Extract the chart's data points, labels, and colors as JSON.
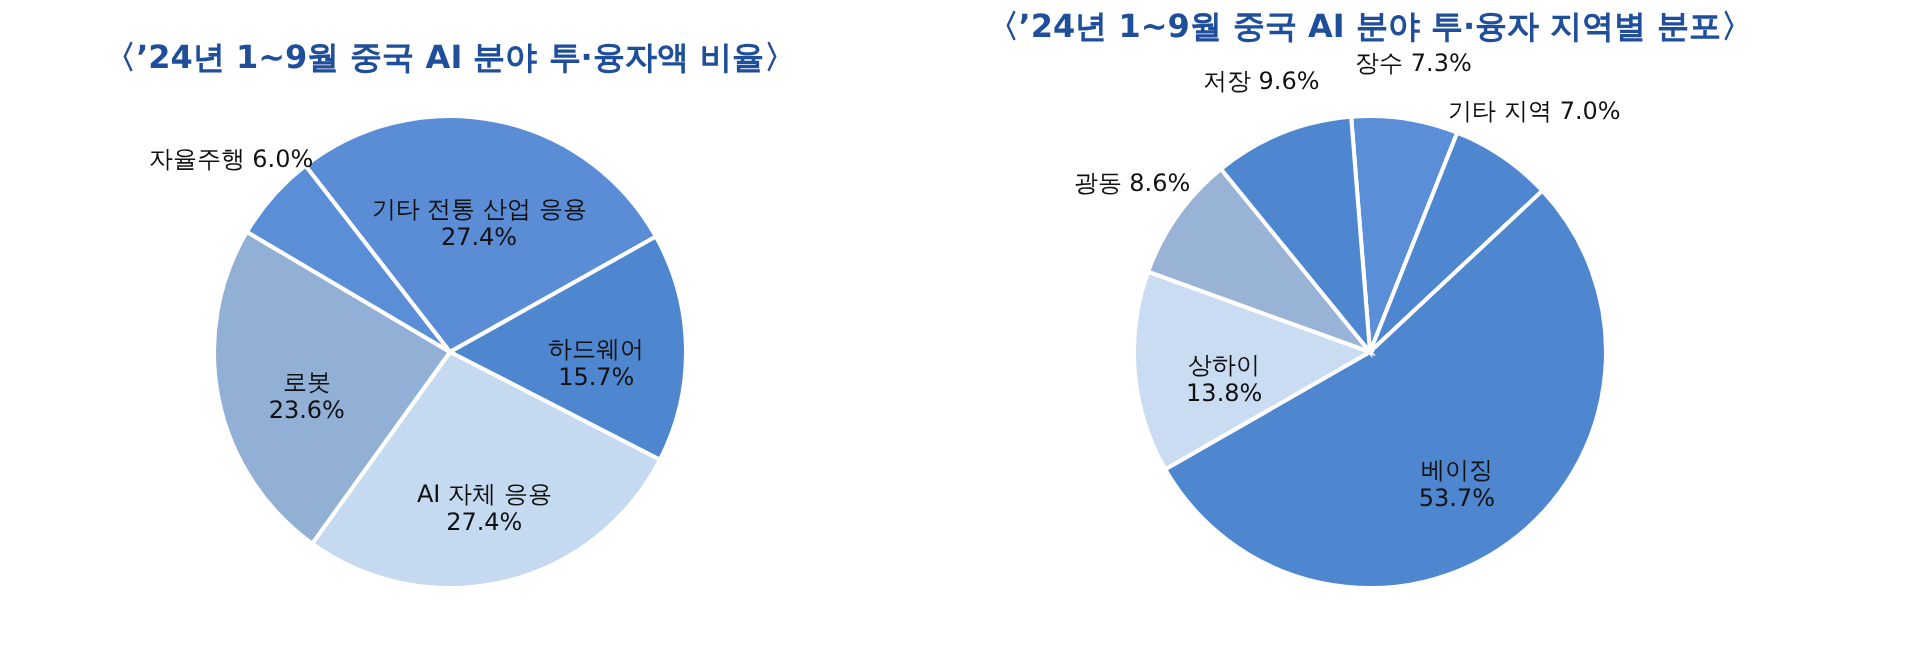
{
  "chart_data": [
    {
      "type": "pie",
      "title": "〈’24년 1~9월 중국 AI 분야 투·융자액 비율〉",
      "categories": [
        "기타 전통 산업 응용",
        "하드웨어",
        "AI 자체 응용",
        "로봇",
        "자율주행"
      ],
      "values": [
        27.4,
        15.7,
        27.4,
        23.6,
        6.0
      ],
      "value_labels": [
        "27.4%",
        "15.7%",
        "27.4%",
        "23.6%",
        "6.0%"
      ],
      "colors": [
        "#5b8dd6",
        "#4f86d0",
        "#c5d9f0",
        "#92afd6",
        "#5a8fd8"
      ],
      "legend": false
    },
    {
      "type": "pie",
      "title": "〈’24년 1~9월 중국 AI 분야 투·융자 지역별 분포〉",
      "categories": [
        "장수",
        "기타 지역",
        "베이징",
        "상하이",
        "광동",
        "저장"
      ],
      "values": [
        7.3,
        7.0,
        53.7,
        13.8,
        8.6,
        9.6
      ],
      "value_labels": [
        "7.3%",
        "7.0%",
        "53.7%",
        "13.8%",
        "8.6%",
        "9.6%"
      ],
      "colors": [
        "#5a8fd8",
        "#4f86d0",
        "#4f86d0",
        "#c9dcf2",
        "#99b3d6",
        "#4f86d0"
      ],
      "legend": false
    }
  ]
}
